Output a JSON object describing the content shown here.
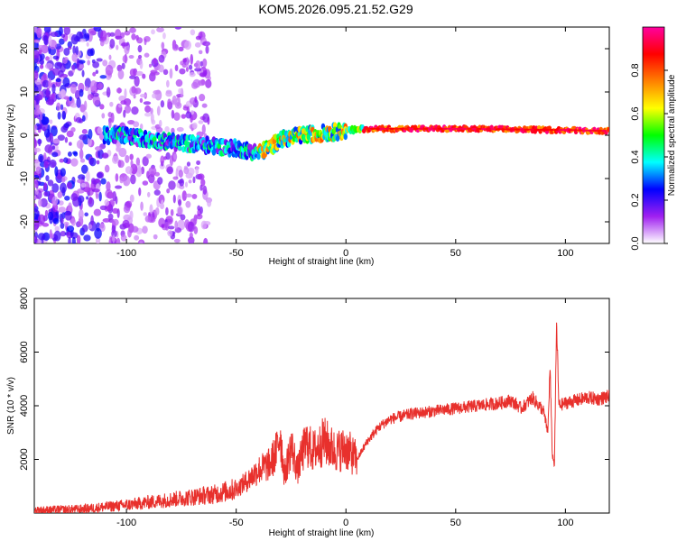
{
  "title": "KOM5.2026.095.21.52.G29",
  "chart_data": [
    {
      "type": "heatmap",
      "xlabel": "Height of straight line (km)",
      "ylabel": "Frequency (Hz)",
      "xlim": [
        -142,
        120
      ],
      "ylim": [
        -25,
        25
      ],
      "xticks": [
        -100,
        -50,
        0,
        50,
        100
      ],
      "yticks": [
        -20,
        -10,
        0,
        10,
        20
      ],
      "ridge": {
        "x": [
          -100,
          -90,
          -80,
          -70,
          -60,
          -50,
          -40,
          -35,
          -30,
          -20,
          -10,
          0,
          10,
          50,
          100,
          120
        ],
        "freq": [
          0,
          -1,
          -1.5,
          -2,
          -2.5,
          -3,
          -4,
          -3,
          -1,
          0,
          0.5,
          1,
          1.5,
          1.5,
          1.2,
          1
        ]
      },
      "colorbar": {
        "label": "Normalized spectral amplitude",
        "range": [
          0,
          1
        ],
        "ticks": [
          0.0,
          0.2,
          0.4,
          0.6,
          0.8
        ],
        "tick_labels": [
          "0.0",
          "0.2",
          "0.4",
          "0.6",
          "0.8"
        ],
        "colors": [
          "#ffffff",
          "#a020f0",
          "#0000ff",
          "#00ffff",
          "#00ff00",
          "#ffff00",
          "#ff8000",
          "#ff0000",
          "#ff00a0"
        ]
      }
    },
    {
      "type": "line",
      "xlabel": "Height of straight line (km)",
      "ylabel": "SNR (10 * v/v)",
      "xlim": [
        -142,
        120
      ],
      "ylim": [
        0,
        8000
      ],
      "xticks": [
        -100,
        -50,
        0,
        50,
        100
      ],
      "yticks": [
        2000,
        4000,
        6000,
        8000
      ],
      "series": [
        {
          "color": "#e8302c",
          "x": [
            -142,
            -120,
            -100,
            -80,
            -60,
            -50,
            -45,
            -40,
            -35,
            -32,
            -30,
            -28,
            -25,
            -22,
            -20,
            -18,
            -15,
            -12,
            -10,
            -5,
            0,
            5,
            10,
            15,
            20,
            25,
            30,
            40,
            50,
            60,
            70,
            75,
            80,
            85,
            88,
            90,
            92,
            93,
            94,
            95,
            96,
            97,
            100,
            105,
            110,
            115,
            120
          ],
          "y": [
            100,
            150,
            300,
            500,
            700,
            900,
            1200,
            1600,
            1800,
            2200,
            3000,
            1400,
            2500,
            1600,
            2200,
            2600,
            2300,
            2500,
            2700,
            2300,
            2400,
            2000,
            2700,
            3200,
            3500,
            3600,
            3700,
            3800,
            3900,
            4000,
            4100,
            4200,
            3900,
            4300,
            4000,
            3800,
            3000,
            5500,
            2200,
            1800,
            7200,
            4000,
            4100,
            4200,
            4300,
            4250,
            4350
          ]
        }
      ]
    }
  ]
}
